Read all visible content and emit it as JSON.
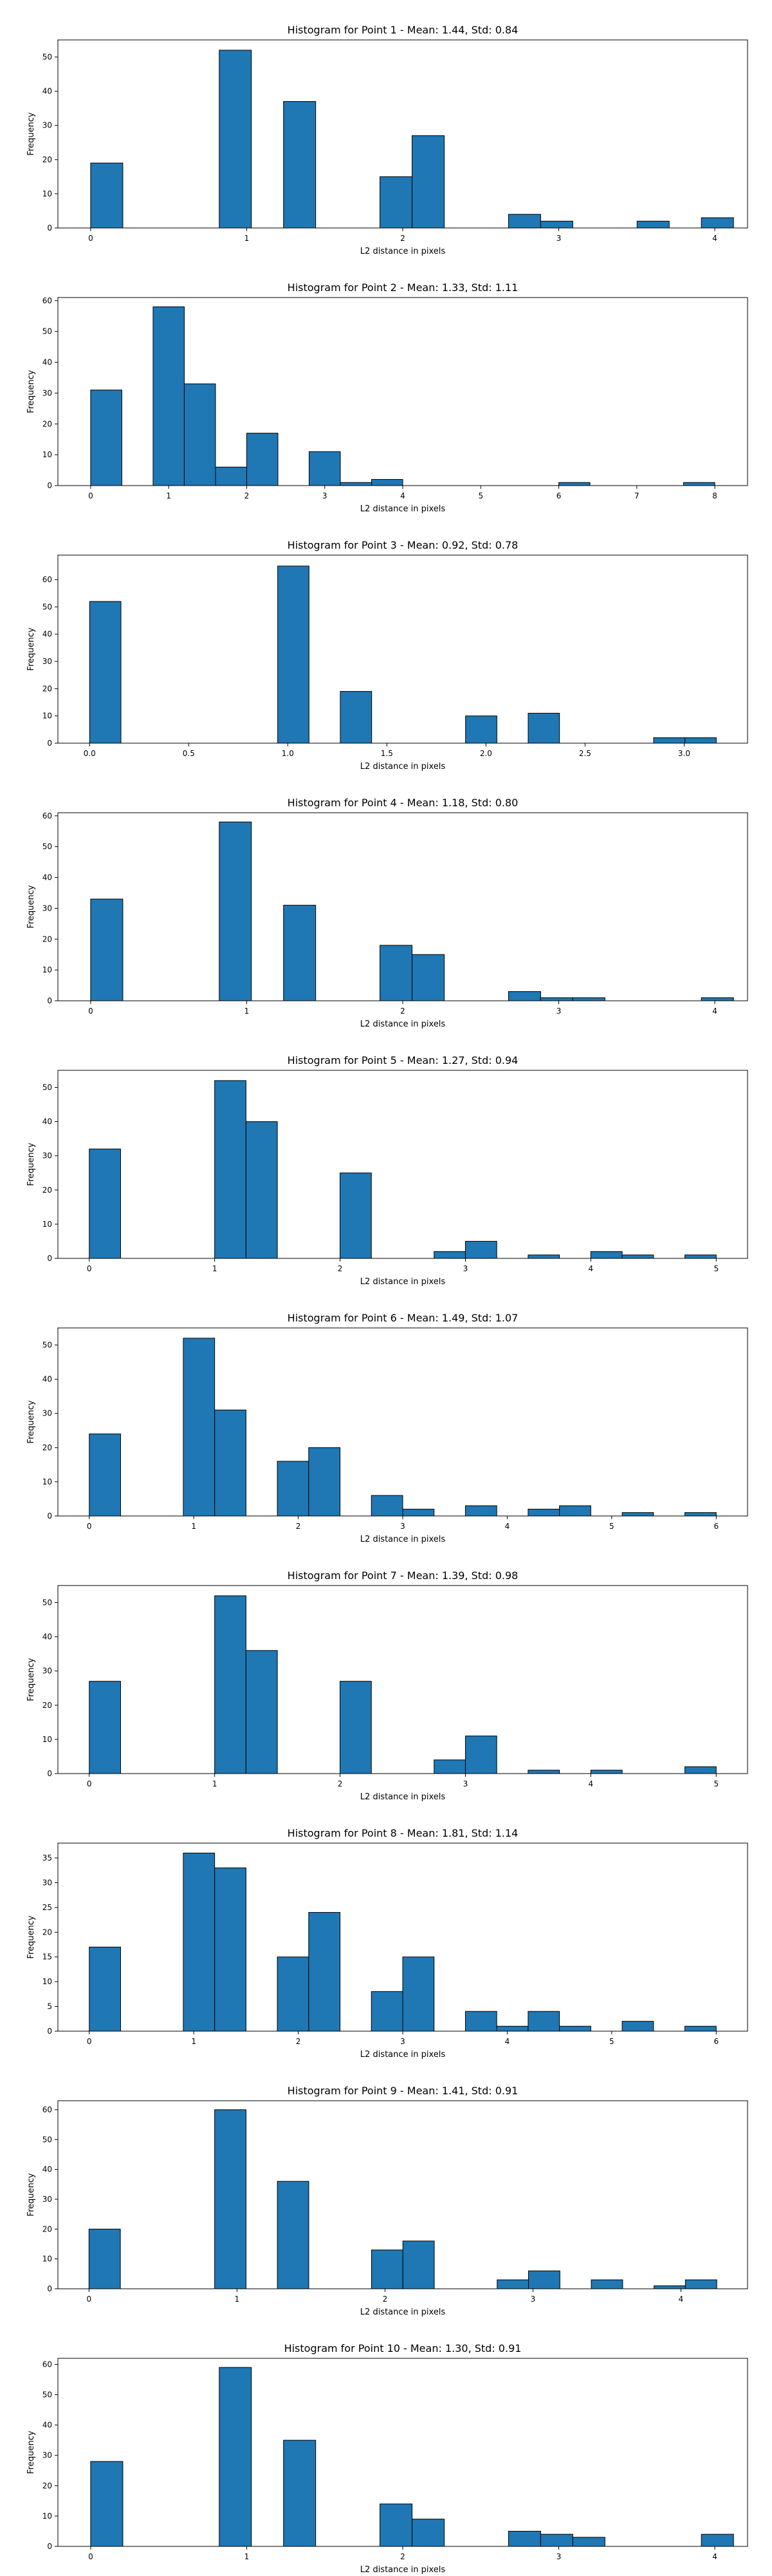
{
  "chart_data": [
    {
      "type": "bar",
      "title": "Histogram for Point 1 - Mean: 1.44, Std: 0.84",
      "xlabel": "L2 distance in pixels",
      "ylabel": "Frequency",
      "xlim": [
        -0.21,
        4.21
      ],
      "ylim": [
        0,
        55
      ],
      "xticks": [
        0,
        1,
        2,
        3,
        4
      ],
      "xtick_labels": [
        "0",
        "1",
        "2",
        "3",
        "4"
      ],
      "yticks": [
        0,
        10,
        20,
        30,
        40,
        50
      ],
      "bin_width": 0.206,
      "bins": [
        {
          "x": 0.0,
          "count": 19
        },
        {
          "x": 0.824,
          "count": 52
        },
        {
          "x": 1.236,
          "count": 37
        },
        {
          "x": 1.854,
          "count": 15
        },
        {
          "x": 2.06,
          "count": 27
        },
        {
          "x": 2.678,
          "count": 4
        },
        {
          "x": 2.884,
          "count": 2
        },
        {
          "x": 3.502,
          "count": 2
        },
        {
          "x": 3.914,
          "count": 3
        }
      ]
    },
    {
      "type": "bar",
      "title": "Histogram for Point 2 - Mean: 1.33, Std: 1.11",
      "xlabel": "L2 distance in pixels",
      "ylabel": "Frequency",
      "xlim": [
        -0.42,
        8.42
      ],
      "ylim": [
        0,
        61
      ],
      "xticks": [
        0,
        1,
        2,
        3,
        4,
        5,
        6,
        7,
        8
      ],
      "xtick_labels": [
        "0",
        "1",
        "2",
        "3",
        "4",
        "5",
        "6",
        "7",
        "8"
      ],
      "yticks": [
        0,
        10,
        20,
        30,
        40,
        50,
        60
      ],
      "bin_width": 0.4,
      "bins": [
        {
          "x": 0.0,
          "count": 31
        },
        {
          "x": 0.8,
          "count": 58
        },
        {
          "x": 1.2,
          "count": 33
        },
        {
          "x": 1.6,
          "count": 6
        },
        {
          "x": 2.0,
          "count": 17
        },
        {
          "x": 2.8,
          "count": 11
        },
        {
          "x": 3.2,
          "count": 1
        },
        {
          "x": 3.6,
          "count": 2
        },
        {
          "x": 6.0,
          "count": 1
        },
        {
          "x": 7.6,
          "count": 1
        }
      ]
    },
    {
      "type": "bar",
      "title": "Histogram for Point 3 - Mean: 0.92, Std: 0.78",
      "xlabel": "L2 distance in pixels",
      "ylabel": "Frequency",
      "xlim": [
        -0.16,
        3.32
      ],
      "ylim": [
        0,
        69
      ],
      "xticks": [
        0,
        0.5,
        1,
        1.5,
        2,
        2.5,
        3
      ],
      "xtick_labels": [
        "0.0",
        "0.5",
        "1.0",
        "1.5",
        "2.0",
        "2.5",
        "3.0"
      ],
      "yticks": [
        0,
        10,
        20,
        30,
        40,
        50,
        60
      ],
      "bin_width": 0.1581,
      "bins": [
        {
          "x": 0.0,
          "count": 52
        },
        {
          "x": 0.949,
          "count": 65
        },
        {
          "x": 1.265,
          "count": 19
        },
        {
          "x": 1.897,
          "count": 10
        },
        {
          "x": 2.213,
          "count": 11
        },
        {
          "x": 2.846,
          "count": 2
        },
        {
          "x": 3.004,
          "count": 2
        }
      ]
    },
    {
      "type": "bar",
      "title": "Histogram for Point 4 - Mean: 1.18, Std: 0.80",
      "xlabel": "L2 distance in pixels",
      "ylabel": "Frequency",
      "xlim": [
        -0.21,
        4.21
      ],
      "ylim": [
        0,
        61
      ],
      "xticks": [
        0,
        1,
        2,
        3,
        4
      ],
      "xtick_labels": [
        "0",
        "1",
        "2",
        "3",
        "4"
      ],
      "yticks": [
        0,
        10,
        20,
        30,
        40,
        50,
        60
      ],
      "bin_width": 0.206,
      "bins": [
        {
          "x": 0.0,
          "count": 33
        },
        {
          "x": 0.824,
          "count": 58
        },
        {
          "x": 1.236,
          "count": 31
        },
        {
          "x": 1.854,
          "count": 18
        },
        {
          "x": 2.06,
          "count": 15
        },
        {
          "x": 2.678,
          "count": 3
        },
        {
          "x": 2.884,
          "count": 1
        },
        {
          "x": 3.09,
          "count": 1
        },
        {
          "x": 3.914,
          "count": 1
        }
      ]
    },
    {
      "type": "bar",
      "title": "Histogram for Point 5 - Mean: 1.27, Std: 0.94",
      "xlabel": "L2 distance in pixels",
      "ylabel": "Frequency",
      "xlim": [
        -0.25,
        5.25
      ],
      "ylim": [
        0,
        55
      ],
      "xticks": [
        0,
        1,
        2,
        3,
        4,
        5
      ],
      "xtick_labels": [
        "0",
        "1",
        "2",
        "3",
        "4",
        "5"
      ],
      "yticks": [
        0,
        10,
        20,
        30,
        40,
        50
      ],
      "bin_width": 0.25,
      "bins": [
        {
          "x": 0.0,
          "count": 32
        },
        {
          "x": 1.0,
          "count": 52
        },
        {
          "x": 1.25,
          "count": 40
        },
        {
          "x": 2.0,
          "count": 25
        },
        {
          "x": 2.75,
          "count": 2
        },
        {
          "x": 3.0,
          "count": 5
        },
        {
          "x": 3.5,
          "count": 1
        },
        {
          "x": 4.0,
          "count": 2
        },
        {
          "x": 4.25,
          "count": 1
        },
        {
          "x": 4.75,
          "count": 1
        }
      ]
    },
    {
      "type": "bar",
      "title": "Histogram for Point 6 - Mean: 1.49, Std: 1.07",
      "xlabel": "L2 distance in pixels",
      "ylabel": "Frequency",
      "xlim": [
        -0.3,
        6.3
      ],
      "ylim": [
        0,
        55
      ],
      "xticks": [
        0,
        1,
        2,
        3,
        4,
        5,
        6
      ],
      "xtick_labels": [
        "0",
        "1",
        "2",
        "3",
        "4",
        "5",
        "6"
      ],
      "yticks": [
        0,
        10,
        20,
        30,
        40,
        50
      ],
      "bin_width": 0.3,
      "bins": [
        {
          "x": 0.0,
          "count": 24
        },
        {
          "x": 0.9,
          "count": 52
        },
        {
          "x": 1.2,
          "count": 31
        },
        {
          "x": 1.8,
          "count": 16
        },
        {
          "x": 2.1,
          "count": 20
        },
        {
          "x": 2.7,
          "count": 6
        },
        {
          "x": 3.0,
          "count": 2
        },
        {
          "x": 3.6,
          "count": 3
        },
        {
          "x": 4.2,
          "count": 2
        },
        {
          "x": 4.5,
          "count": 3
        },
        {
          "x": 5.1,
          "count": 1
        },
        {
          "x": 5.7,
          "count": 1
        }
      ]
    },
    {
      "type": "bar",
      "title": "Histogram for Point 7 - Mean: 1.39, Std: 0.98",
      "xlabel": "L2 distance in pixels",
      "ylabel": "Frequency",
      "xlim": [
        -0.25,
        5.25
      ],
      "ylim": [
        0,
        55
      ],
      "xticks": [
        0,
        1,
        2,
        3,
        4,
        5
      ],
      "xtick_labels": [
        "0",
        "1",
        "2",
        "3",
        "4",
        "5"
      ],
      "yticks": [
        0,
        10,
        20,
        30,
        40,
        50
      ],
      "bin_width": 0.25,
      "bins": [
        {
          "x": 0.0,
          "count": 27
        },
        {
          "x": 1.0,
          "count": 52
        },
        {
          "x": 1.25,
          "count": 36
        },
        {
          "x": 2.0,
          "count": 27
        },
        {
          "x": 2.75,
          "count": 4
        },
        {
          "x": 3.0,
          "count": 11
        },
        {
          "x": 3.5,
          "count": 1
        },
        {
          "x": 4.0,
          "count": 1
        },
        {
          "x": 4.75,
          "count": 2
        }
      ]
    },
    {
      "type": "bar",
      "title": "Histogram for Point 8 - Mean: 1.81, Std: 1.14",
      "xlabel": "L2 distance in pixels",
      "ylabel": "Frequency",
      "xlim": [
        -0.3,
        6.3
      ],
      "ylim": [
        0,
        38
      ],
      "xticks": [
        0,
        1,
        2,
        3,
        4,
        5,
        6
      ],
      "xtick_labels": [
        "0",
        "1",
        "2",
        "3",
        "4",
        "5",
        "6"
      ],
      "yticks": [
        0,
        5,
        10,
        15,
        20,
        25,
        30,
        35
      ],
      "bin_width": 0.3,
      "bins": [
        {
          "x": 0.0,
          "count": 17
        },
        {
          "x": 0.9,
          "count": 36
        },
        {
          "x": 1.2,
          "count": 33
        },
        {
          "x": 1.8,
          "count": 15
        },
        {
          "x": 2.1,
          "count": 24
        },
        {
          "x": 2.7,
          "count": 8
        },
        {
          "x": 3.0,
          "count": 15
        },
        {
          "x": 3.6,
          "count": 4
        },
        {
          "x": 3.9,
          "count": 1
        },
        {
          "x": 4.2,
          "count": 4
        },
        {
          "x": 4.5,
          "count": 1
        },
        {
          "x": 5.1,
          "count": 2
        },
        {
          "x": 5.7,
          "count": 1
        }
      ]
    },
    {
      "type": "bar",
      "title": "Histogram for Point 9 - Mean: 1.41, Std: 0.91",
      "xlabel": "L2 distance in pixels",
      "ylabel": "Frequency",
      "xlim": [
        -0.21,
        4.45
      ],
      "ylim": [
        0,
        63
      ],
      "xticks": [
        0,
        1,
        2,
        3,
        4
      ],
      "xtick_labels": [
        "0",
        "1",
        "2",
        "3",
        "4"
      ],
      "yticks": [
        0,
        10,
        20,
        30,
        40,
        50,
        60
      ],
      "bin_width": 0.2121,
      "bins": [
        {
          "x": 0.0,
          "count": 20
        },
        {
          "x": 0.849,
          "count": 60
        },
        {
          "x": 1.273,
          "count": 36
        },
        {
          "x": 1.909,
          "count": 13
        },
        {
          "x": 2.121,
          "count": 16
        },
        {
          "x": 2.758,
          "count": 3
        },
        {
          "x": 2.97,
          "count": 6
        },
        {
          "x": 3.394,
          "count": 3
        },
        {
          "x": 3.818,
          "count": 1
        },
        {
          "x": 4.03,
          "count": 3
        }
      ]
    },
    {
      "type": "bar",
      "title": "Histogram for Point 10 - Mean: 1.30, Std: 0.91",
      "xlabel": "L2 distance in pixels",
      "ylabel": "Frequency",
      "xlim": [
        -0.21,
        4.21
      ],
      "ylim": [
        0,
        62
      ],
      "xticks": [
        0,
        1,
        2,
        3,
        4
      ],
      "xtick_labels": [
        "0",
        "1",
        "2",
        "3",
        "4"
      ],
      "yticks": [
        0,
        10,
        20,
        30,
        40,
        50,
        60
      ],
      "bin_width": 0.206,
      "bins": [
        {
          "x": 0.0,
          "count": 28
        },
        {
          "x": 0.824,
          "count": 59
        },
        {
          "x": 1.236,
          "count": 35
        },
        {
          "x": 1.854,
          "count": 14
        },
        {
          "x": 2.06,
          "count": 9
        },
        {
          "x": 2.678,
          "count": 5
        },
        {
          "x": 2.884,
          "count": 4
        },
        {
          "x": 3.09,
          "count": 3
        },
        {
          "x": 3.914,
          "count": 4
        }
      ]
    }
  ]
}
